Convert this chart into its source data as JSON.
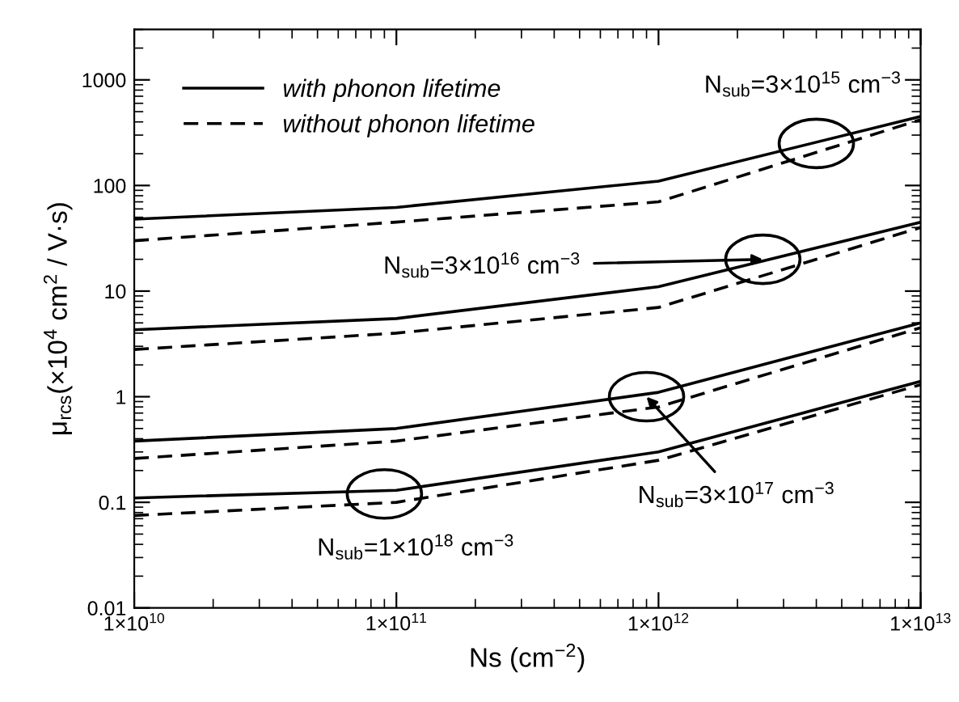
{
  "chart_data": {
    "type": "line",
    "xlabel": "Ns (cm$^{−2}$)",
    "ylabel": "μ$_{rcs}$(×10$^{4}$ cm$^{2}$ / V·s)",
    "x": [
      10000000000.0,
      100000000000.0,
      1000000000000.0,
      10000000000000.0
    ],
    "series": [
      {
        "name": "with phonon lifetime",
        "color": "#000000",
        "line_style": "solid",
        "values": [
          48,
          62,
          110,
          450
        ]
      },
      {
        "name": "without phonon lifetime",
        "color": "#000000",
        "line_style": "dashed",
        "values": [
          30,
          45,
          70,
          420
        ]
      },
      {
        "color": "#000000",
        "line_style": "solid",
        "values": [
          4.3,
          5.5,
          11,
          45
        ]
      },
      {
        "color": "#000000",
        "line_style": "dashed",
        "values": [
          2.8,
          4,
          7,
          40
        ]
      },
      {
        "color": "#000000",
        "line_style": "solid",
        "values": [
          0.38,
          0.5,
          1.1,
          5
        ]
      },
      {
        "color": "#000000",
        "line_style": "dashed",
        "values": [
          0.26,
          0.38,
          0.8,
          4.5
        ]
      },
      {
        "color": "#000000",
        "line_style": "solid",
        "values": [
          0.11,
          0.13,
          0.3,
          1.4
        ]
      },
      {
        "color": "#000000",
        "line_style": "dashed",
        "values": [
          0.075,
          0.1,
          0.25,
          1.3
        ]
      }
    ],
    "annotations": [
      {
        "text": "N$_{sub}$=3×10$^{15}$ cm$^{−3}$",
        "x": 4000000000000.0,
        "y": 250
      },
      {
        "text": "N$_{sub}$=3×10$^{16}$ cm$^{−3}$",
        "x": 2500000000000.0,
        "y": 20
      },
      {
        "text": "N$_{sub}$=3×10$^{17}$ cm$^{−3}$",
        "x": 900000000000.0,
        "y": 1
      },
      {
        "text": "N$_{sub}$=1×10$^{18}$ cm$^{−3}$",
        "x": 90000000000.0,
        "y": 0.12
      }
    ],
    "log": "xy",
    "xlim": [
      10000000000.0,
      10000000000000.0
    ],
    "xticks": [
      {
        "value": 10000000000.0,
        "label": "1×10$^{10}$"
      },
      {
        "value": 100000000000.0,
        "label": "1×10$^{11}$"
      },
      {
        "value": 1000000000000.0,
        "label": "1×10$^{12}$"
      },
      {
        "value": 10000000000000.0,
        "label": "1×10$^{13}$"
      }
    ],
    "ylim": [
      0.01,
      3000
    ],
    "yticks": [
      0.01,
      0.1,
      1,
      10,
      100,
      1000
    ],
    "marker": "none",
    "grid": false,
    "legend": "top left"
  }
}
